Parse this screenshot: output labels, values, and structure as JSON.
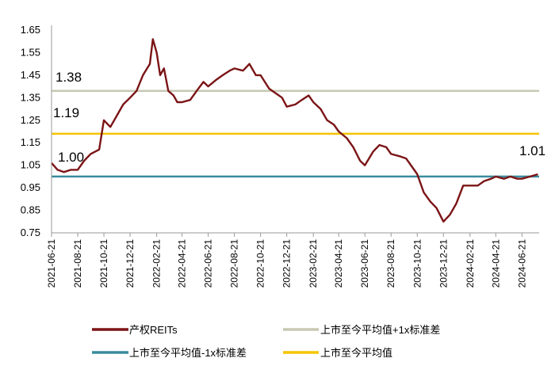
{
  "chart_data": {
    "type": "line",
    "ylim": [
      0.75,
      1.65
    ],
    "y_ticks": [
      "1.65",
      "1.55",
      "1.45",
      "1.35",
      "1.25",
      "1.15",
      "1.05",
      "0.95",
      "0.85",
      "0.75"
    ],
    "x_ticks": [
      "2021-06-21",
      "2021-08-21",
      "2021-10-21",
      "2021-12-21",
      "2022-02-21",
      "2022-04-21",
      "2022-06-21",
      "2022-08-21",
      "2022-10-21",
      "2022-12-21",
      "2023-02-21",
      "2023-04-21",
      "2023-06-21",
      "2023-08-21",
      "2023-10-21",
      "2023-12-21",
      "2024-02-21",
      "2024-04-21",
      "2024-06-21"
    ],
    "x_range": [
      "2021-06-21",
      "2024-07-31"
    ],
    "grid": false,
    "legend_position": "bottom",
    "series": [
      {
        "name": "产权REITs",
        "color": "#7B1416",
        "points": [
          [
            "2021-06-21",
            1.06
          ],
          [
            "2021-07-05",
            1.03
          ],
          [
            "2021-07-20",
            1.02
          ],
          [
            "2021-08-05",
            1.03
          ],
          [
            "2021-08-21",
            1.03
          ],
          [
            "2021-09-05",
            1.07
          ],
          [
            "2021-09-20",
            1.1
          ],
          [
            "2021-10-10",
            1.12
          ],
          [
            "2021-10-21",
            1.25
          ],
          [
            "2021-11-05",
            1.22
          ],
          [
            "2021-11-20",
            1.27
          ],
          [
            "2021-12-05",
            1.32
          ],
          [
            "2021-12-21",
            1.35
          ],
          [
            "2022-01-05",
            1.38
          ],
          [
            "2022-01-20",
            1.45
          ],
          [
            "2022-02-05",
            1.5
          ],
          [
            "2022-02-12",
            1.61
          ],
          [
            "2022-02-21",
            1.55
          ],
          [
            "2022-03-01",
            1.45
          ],
          [
            "2022-03-10",
            1.48
          ],
          [
            "2022-03-20",
            1.38
          ],
          [
            "2022-04-01",
            1.36
          ],
          [
            "2022-04-10",
            1.33
          ],
          [
            "2022-04-21",
            1.33
          ],
          [
            "2022-05-10",
            1.34
          ],
          [
            "2022-05-25",
            1.38
          ],
          [
            "2022-06-10",
            1.42
          ],
          [
            "2022-06-21",
            1.4
          ],
          [
            "2022-07-10",
            1.43
          ],
          [
            "2022-07-25",
            1.45
          ],
          [
            "2022-08-10",
            1.47
          ],
          [
            "2022-08-21",
            1.48
          ],
          [
            "2022-09-10",
            1.47
          ],
          [
            "2022-09-25",
            1.5
          ],
          [
            "2022-10-10",
            1.45
          ],
          [
            "2022-10-21",
            1.45
          ],
          [
            "2022-11-10",
            1.39
          ],
          [
            "2022-11-25",
            1.37
          ],
          [
            "2022-12-10",
            1.35
          ],
          [
            "2022-12-21",
            1.31
          ],
          [
            "2023-01-10",
            1.32
          ],
          [
            "2023-01-25",
            1.34
          ],
          [
            "2023-02-10",
            1.36
          ],
          [
            "2023-02-21",
            1.33
          ],
          [
            "2023-03-10",
            1.3
          ],
          [
            "2023-03-25",
            1.25
          ],
          [
            "2023-04-10",
            1.23
          ],
          [
            "2023-04-21",
            1.2
          ],
          [
            "2023-05-10",
            1.17
          ],
          [
            "2023-05-25",
            1.13
          ],
          [
            "2023-06-10",
            1.07
          ],
          [
            "2023-06-21",
            1.05
          ],
          [
            "2023-07-10",
            1.11
          ],
          [
            "2023-07-25",
            1.14
          ],
          [
            "2023-08-10",
            1.13
          ],
          [
            "2023-08-21",
            1.1
          ],
          [
            "2023-09-10",
            1.09
          ],
          [
            "2023-09-25",
            1.08
          ],
          [
            "2023-10-10",
            1.04
          ],
          [
            "2023-10-21",
            1.01
          ],
          [
            "2023-11-05",
            0.93
          ],
          [
            "2023-11-20",
            0.89
          ],
          [
            "2023-12-05",
            0.86
          ],
          [
            "2023-12-21",
            0.8
          ],
          [
            "2024-01-05",
            0.83
          ],
          [
            "2024-01-20",
            0.88
          ],
          [
            "2024-02-05",
            0.96
          ],
          [
            "2024-02-21",
            0.96
          ],
          [
            "2024-03-10",
            0.96
          ],
          [
            "2024-03-25",
            0.98
          ],
          [
            "2024-04-10",
            0.99
          ],
          [
            "2024-04-21",
            1.0
          ],
          [
            "2024-05-10",
            0.99
          ],
          [
            "2024-05-25",
            1.0
          ],
          [
            "2024-06-10",
            0.99
          ],
          [
            "2024-06-21",
            0.99
          ],
          [
            "2024-07-10",
            1.0
          ],
          [
            "2024-07-28",
            1.01
          ]
        ]
      },
      {
        "name": "上市至今平均值+1x标准差",
        "color": "#C8C8B4",
        "value": 1.38
      },
      {
        "name": "上市至今平均值-1x标准差",
        "color": "#3A8B9E",
        "value": 1.0
      },
      {
        "name": "上市至今平均值",
        "color": "#F5C400",
        "value": 1.19
      }
    ],
    "annotations": [
      "1.38",
      "1.19",
      "1.00",
      "1.01"
    ]
  }
}
